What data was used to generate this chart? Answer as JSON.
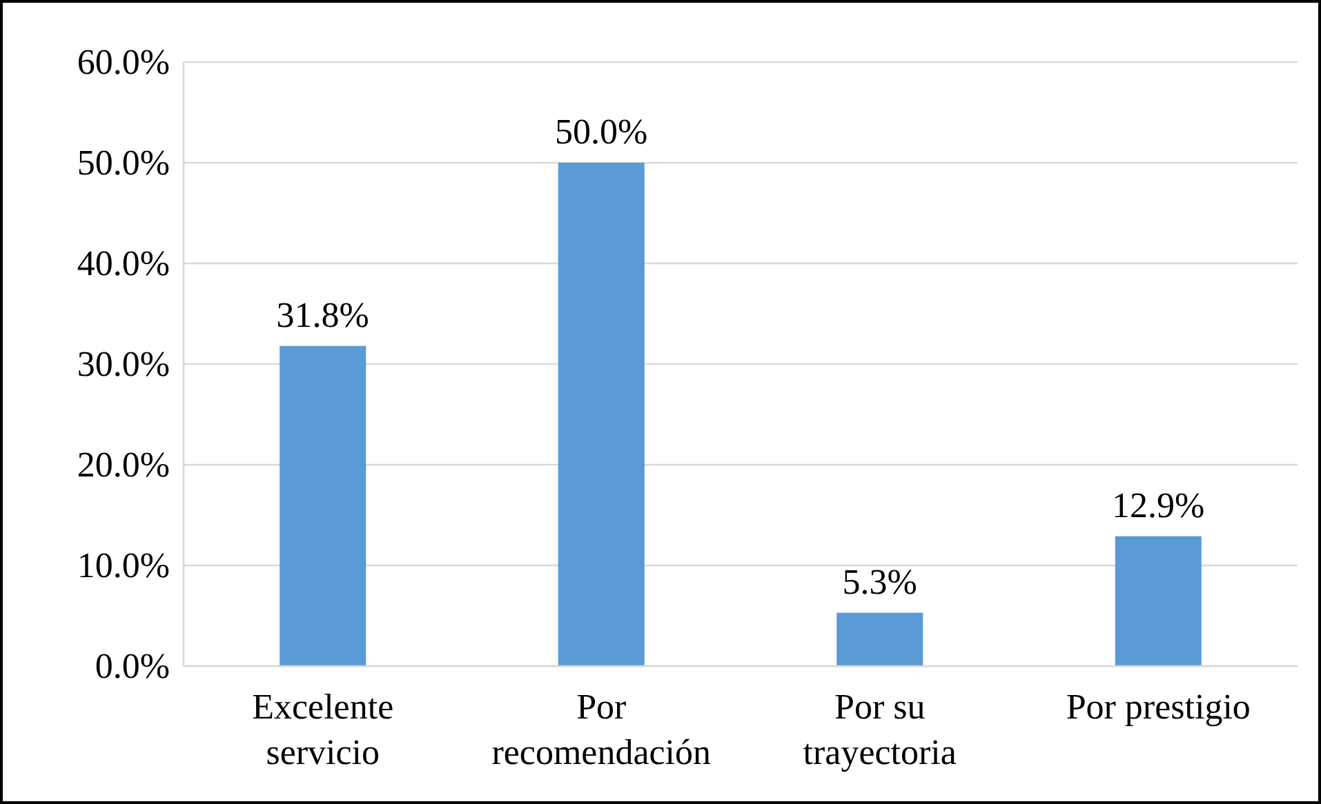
{
  "chart_data": {
    "type": "bar",
    "categories": [
      "Excelente servicio",
      "Por recomendación",
      "Por su trayectoria",
      "Por prestigio"
    ],
    "values": [
      31.8,
      50.0,
      5.3,
      12.9
    ],
    "color": "#5b9bd5",
    "value_labels": [
      "31.8%",
      "50.0%",
      "5.3%",
      "12.9%"
    ],
    "ylim": [
      0,
      60
    ],
    "yticks": [
      {
        "value": 0,
        "label": "0.0%"
      },
      {
        "value": 10,
        "label": "10.0%"
      },
      {
        "value": 20,
        "label": "20.0%"
      },
      {
        "value": 30,
        "label": "30.0%"
      },
      {
        "value": 40,
        "label": "40.0%"
      },
      {
        "value": 50,
        "label": "50.0%"
      },
      {
        "value": 60,
        "label": "60.0%"
      }
    ],
    "grid": "y"
  }
}
